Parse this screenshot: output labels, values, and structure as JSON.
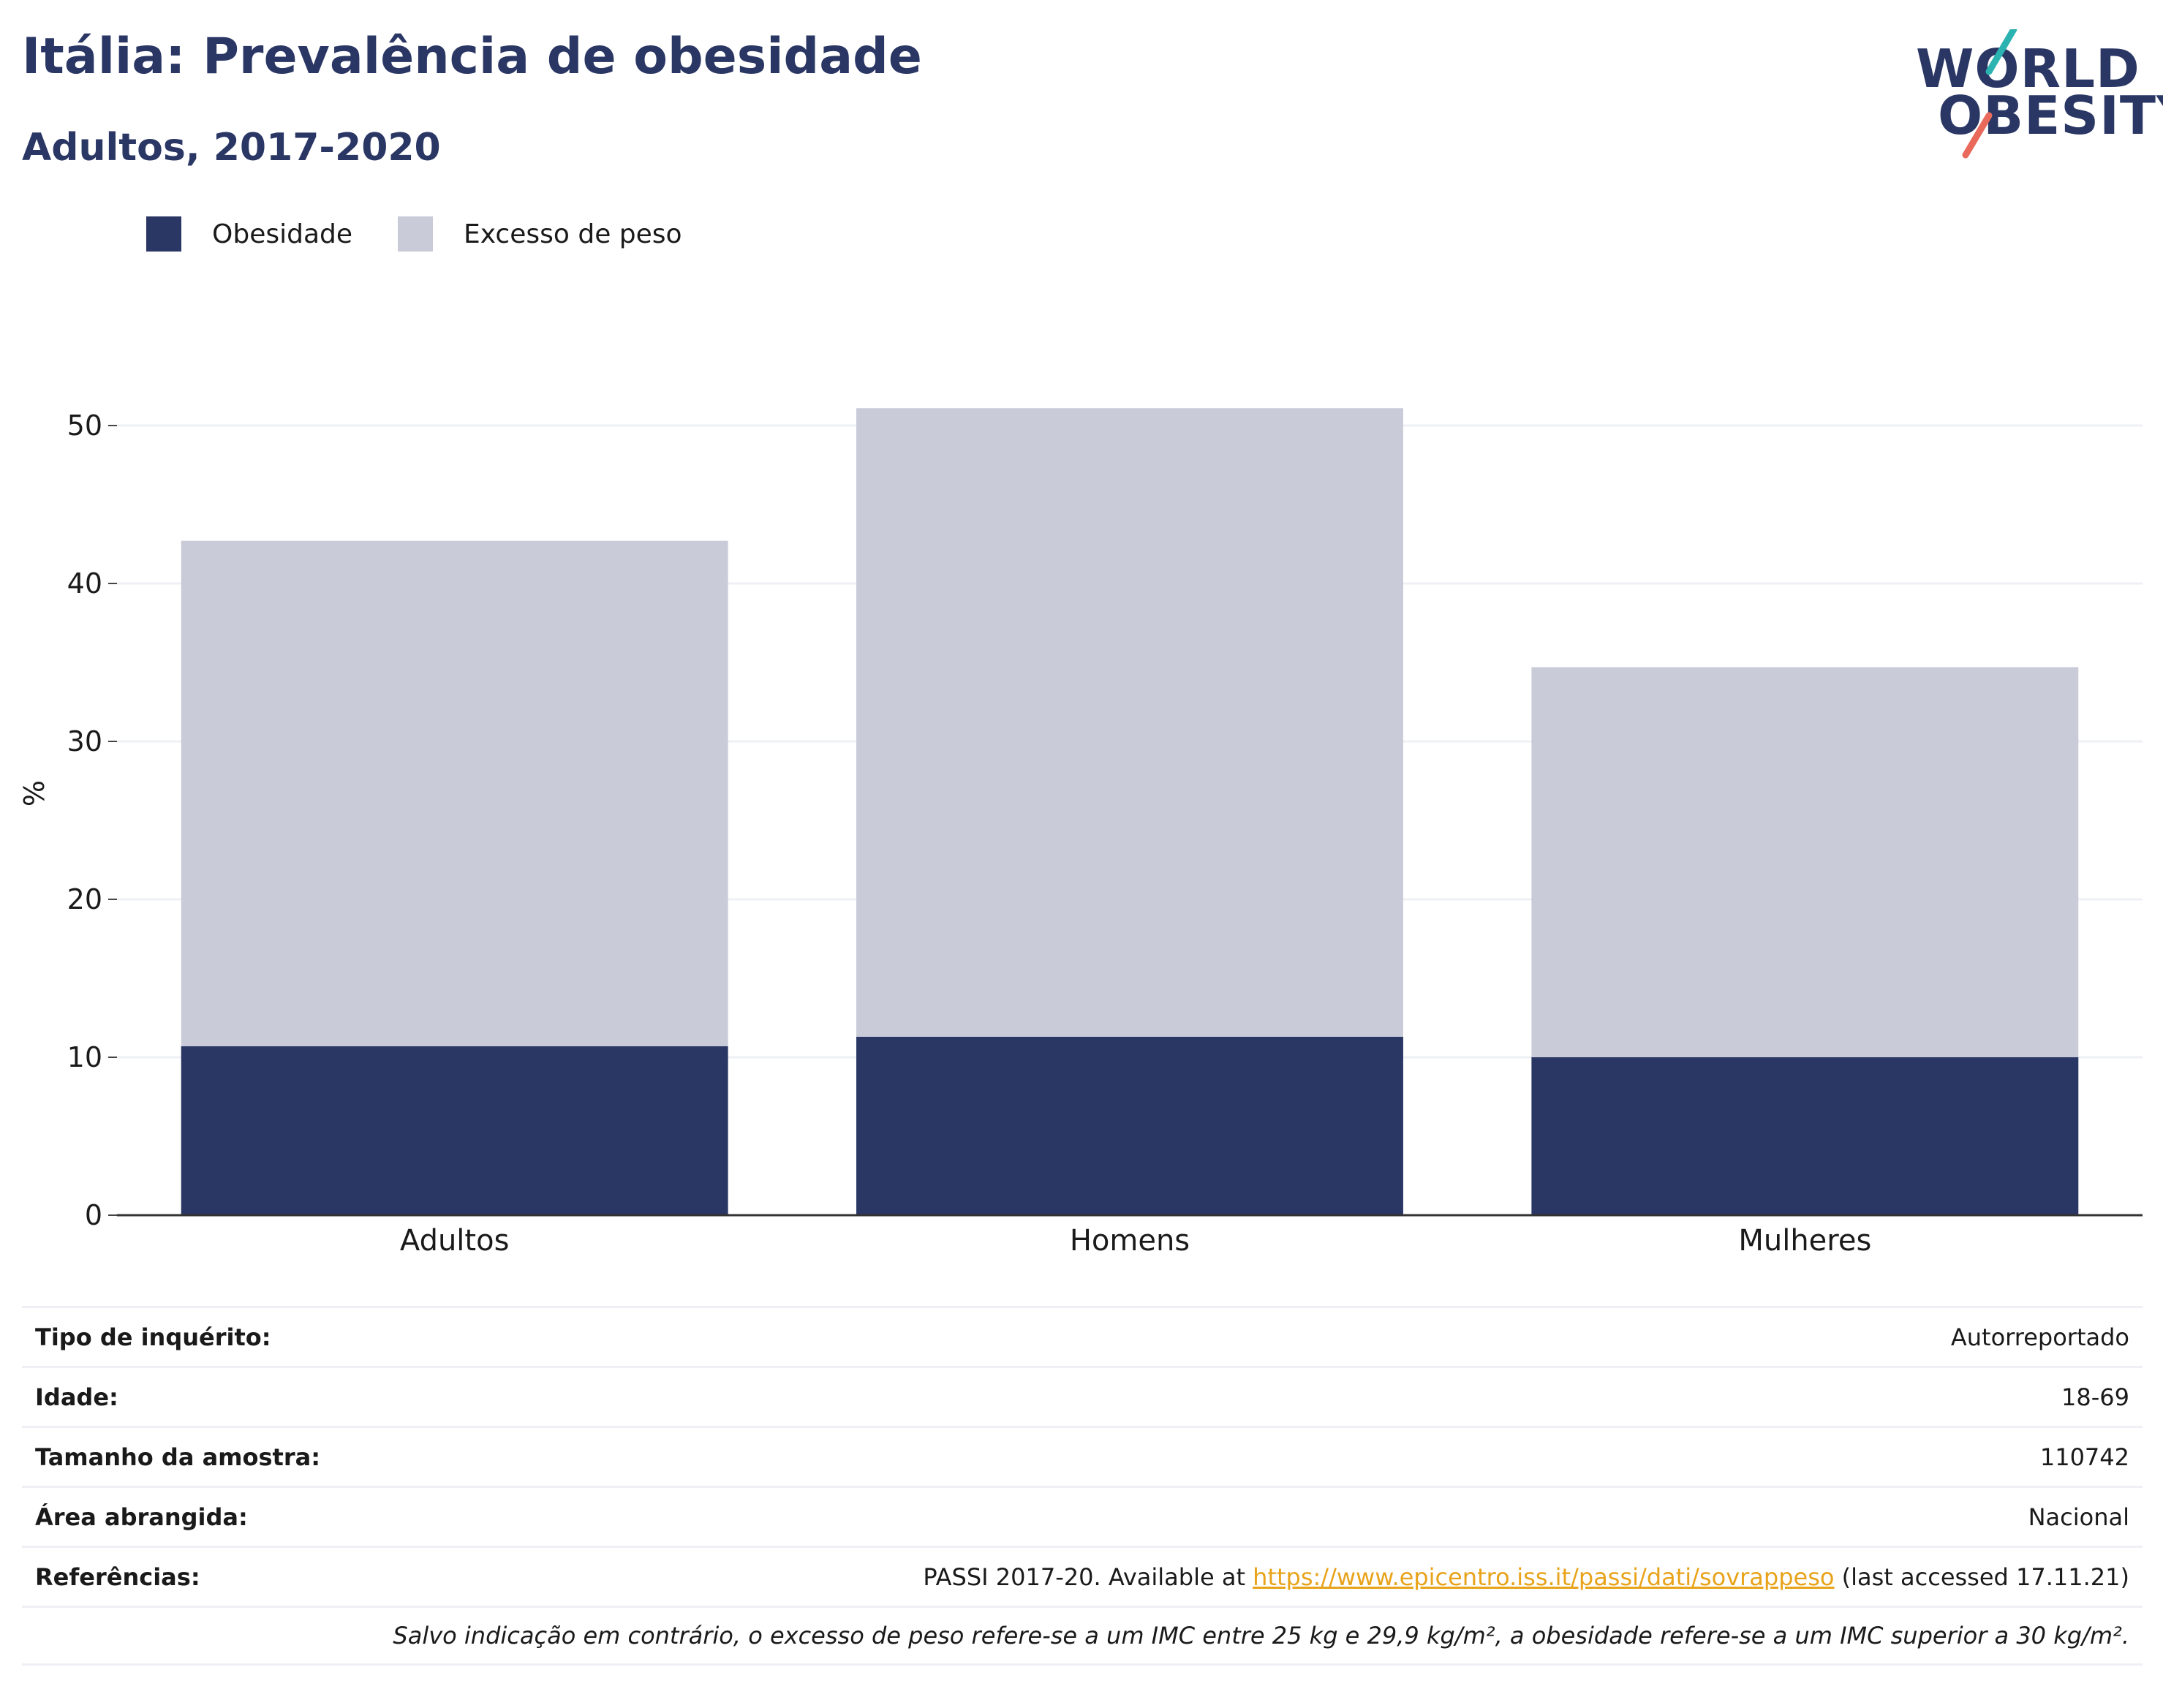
{
  "header": {
    "title": "Itália: Prevalência de obesidade",
    "subtitle": "Adultos, 2017-2020"
  },
  "logo": {
    "line1": "WORLD",
    "line2": "OBESITY"
  },
  "colors": {
    "obesity": "#2a3664",
    "overweight": "#c9ccd8",
    "accent_teal": "#2bb3b1",
    "accent_coral": "#e9695a",
    "link": "#e8a31a"
  },
  "chart_data": {
    "type": "bar",
    "stacked": true,
    "categories": [
      "Adultos",
      "Homens",
      "Mulheres"
    ],
    "series": [
      {
        "name": "Obesidade",
        "values": [
          10.7,
          11.3,
          10.0
        ]
      },
      {
        "name": "Excesso de peso",
        "values": [
          32.0,
          39.8,
          24.7
        ]
      }
    ],
    "ylabel": "%",
    "ylim": [
      0,
      53
    ],
    "yticks": [
      0,
      10,
      20,
      30,
      40,
      50
    ],
    "grid": true,
    "legend": "top-left"
  },
  "meta": {
    "rows": [
      {
        "label": "Tipo de inquérito:",
        "value": "Autorreportado"
      },
      {
        "label": "Idade:",
        "value": "18-69"
      },
      {
        "label": "Tamanho da amostra:",
        "value": "110742"
      },
      {
        "label": "Área abrangida:",
        "value": "Nacional"
      }
    ],
    "references": {
      "label": "Referências:",
      "prefix": "PASSI 2017-20. Available at ",
      "link": "https://www.epicentro.iss.it/passi/dati/sovrappeso",
      "suffix": " (last accessed 17.11.21)"
    },
    "note": "Salvo indicação em contrário, o excesso de peso refere-se a um IMC entre 25 kg e 29,9 kg/m², a obesidade refere-se a um IMC superior a 30 kg/m²."
  }
}
